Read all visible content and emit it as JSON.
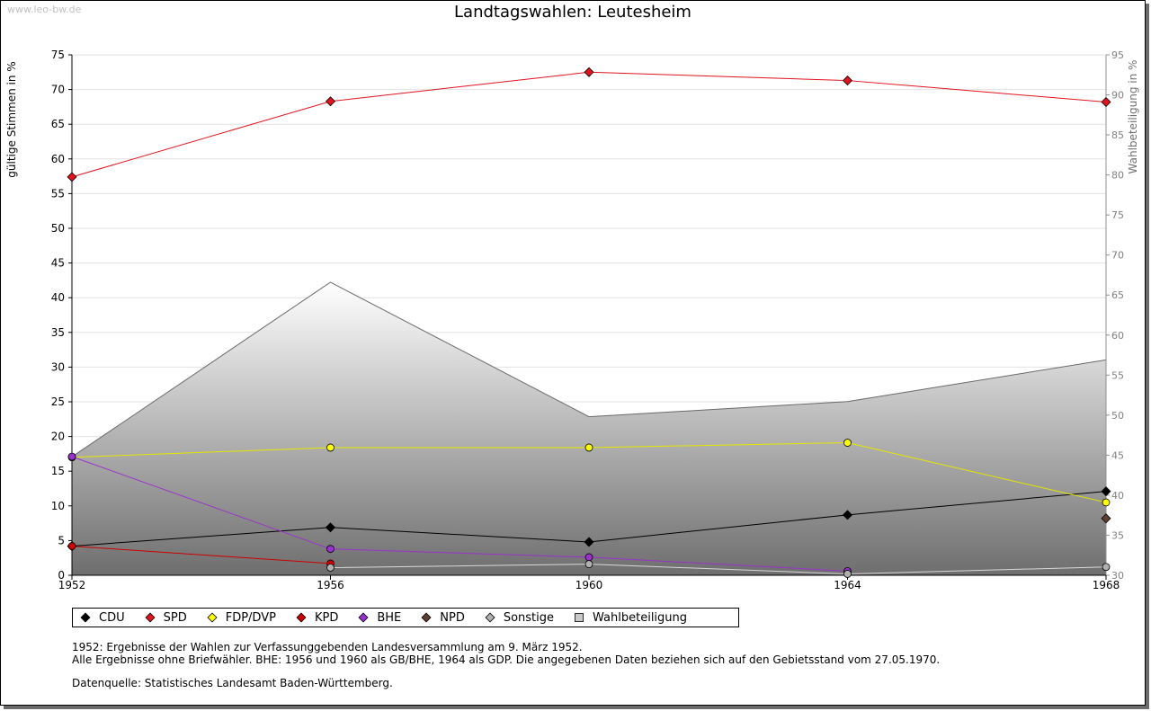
{
  "watermark": "www.leo-bw.de",
  "chart_data": {
    "type": "line",
    "title": "Landtagswahlen: Leutesheim",
    "ylabel": "gültige Stimmen in %",
    "y2label": "Wahlbeteiligung in %",
    "x": [
      1952,
      1956,
      1960,
      1964,
      1968
    ],
    "xticks": [
      "1952",
      "1956",
      "1960",
      "1964",
      "1968"
    ],
    "ylim": [
      0,
      75
    ],
    "yticks": [
      0,
      5,
      10,
      15,
      20,
      25,
      30,
      35,
      40,
      45,
      50,
      55,
      60,
      65,
      70,
      75
    ],
    "y2lim": [
      30,
      95
    ],
    "y2ticks": [
      30,
      35,
      40,
      45,
      50,
      55,
      60,
      65,
      70,
      75,
      80,
      85,
      90,
      95
    ],
    "grid": true,
    "area": {
      "name": "Wahlbeteiligung",
      "axis": "right",
      "values": [
        44.8,
        66.6,
        49.8,
        51.7,
        56.9
      ],
      "color": "#a8a8a8"
    },
    "series": [
      {
        "name": "CDU",
        "color": "#000000",
        "line": "#000000",
        "values": [
          4.2,
          6.9,
          4.8,
          8.7,
          12.1
        ]
      },
      {
        "name": "SPD",
        "color": "#e0141e",
        "line": "#e0141e",
        "values": [
          57.4,
          68.3,
          72.5,
          71.3,
          68.2
        ]
      },
      {
        "name": "FDP/DVP",
        "color": "#ffff00",
        "line": "#e6e600",
        "values": [
          17.0,
          18.4,
          18.4,
          19.1,
          10.5
        ]
      },
      {
        "name": "KPD",
        "color": "#cc0000",
        "line": "#cc0000",
        "values": [
          4.2,
          1.7,
          null,
          null,
          null
        ]
      },
      {
        "name": "BHE",
        "color": "#9932cc",
        "line": "#9932cc",
        "values": [
          17.1,
          3.8,
          2.6,
          0.6,
          null
        ]
      },
      {
        "name": "NPD",
        "color": "#5c4033",
        "line": "#5c4033",
        "values": [
          null,
          null,
          null,
          null,
          8.2
        ]
      },
      {
        "name": "Sonstige",
        "color": "#b0b0b0",
        "line": "#d8d8d8",
        "values": [
          null,
          1.1,
          1.6,
          0.2,
          1.2
        ]
      }
    ],
    "legend": [
      "CDU",
      "SPD",
      "FDP/DVP",
      "KPD",
      "BHE",
      "NPD",
      "Sonstige",
      "Wahlbeteiligung"
    ]
  },
  "notes": {
    "line1": "1952: Ergebnisse der Wahlen zur Verfassunggebenden Landesversammlung am 9. März 1952.",
    "line2": "Alle Ergebnisse ohne Briefwähler. BHE: 1956 und 1960 als GB/BHE, 1964 als GDP. Die angegebenen Daten beziehen sich auf den Gebietsstand vom 27.05.1970.",
    "line3": "Datenquelle: Statistisches Landesamt Baden-Württemberg."
  }
}
